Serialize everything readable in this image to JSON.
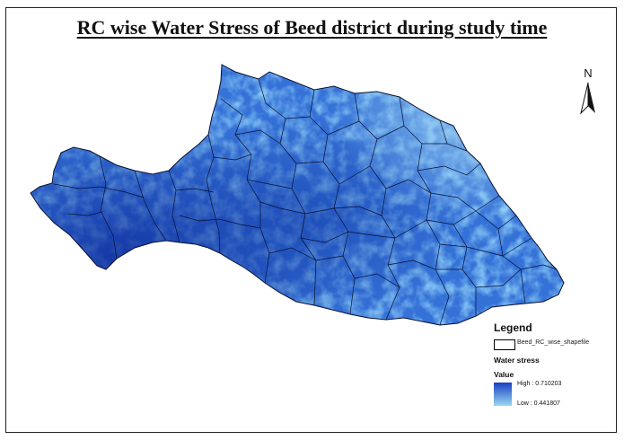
{
  "title": "RC wise Water Stress of Beed district during study time",
  "north_arrow": {
    "label": "N"
  },
  "legend": {
    "title": "Legend",
    "shapefile_label": "Beed_RC_wise_shapefile",
    "layer_label": "Water stress",
    "value_label": "Value",
    "high_label": "High : 0.710203",
    "low_label": "Low : 0.441807"
  },
  "colors": {
    "high": "#1a3fc4",
    "mid": "#3a7ae0",
    "low": "#9ad8f0",
    "boundary": "#0a1030"
  }
}
